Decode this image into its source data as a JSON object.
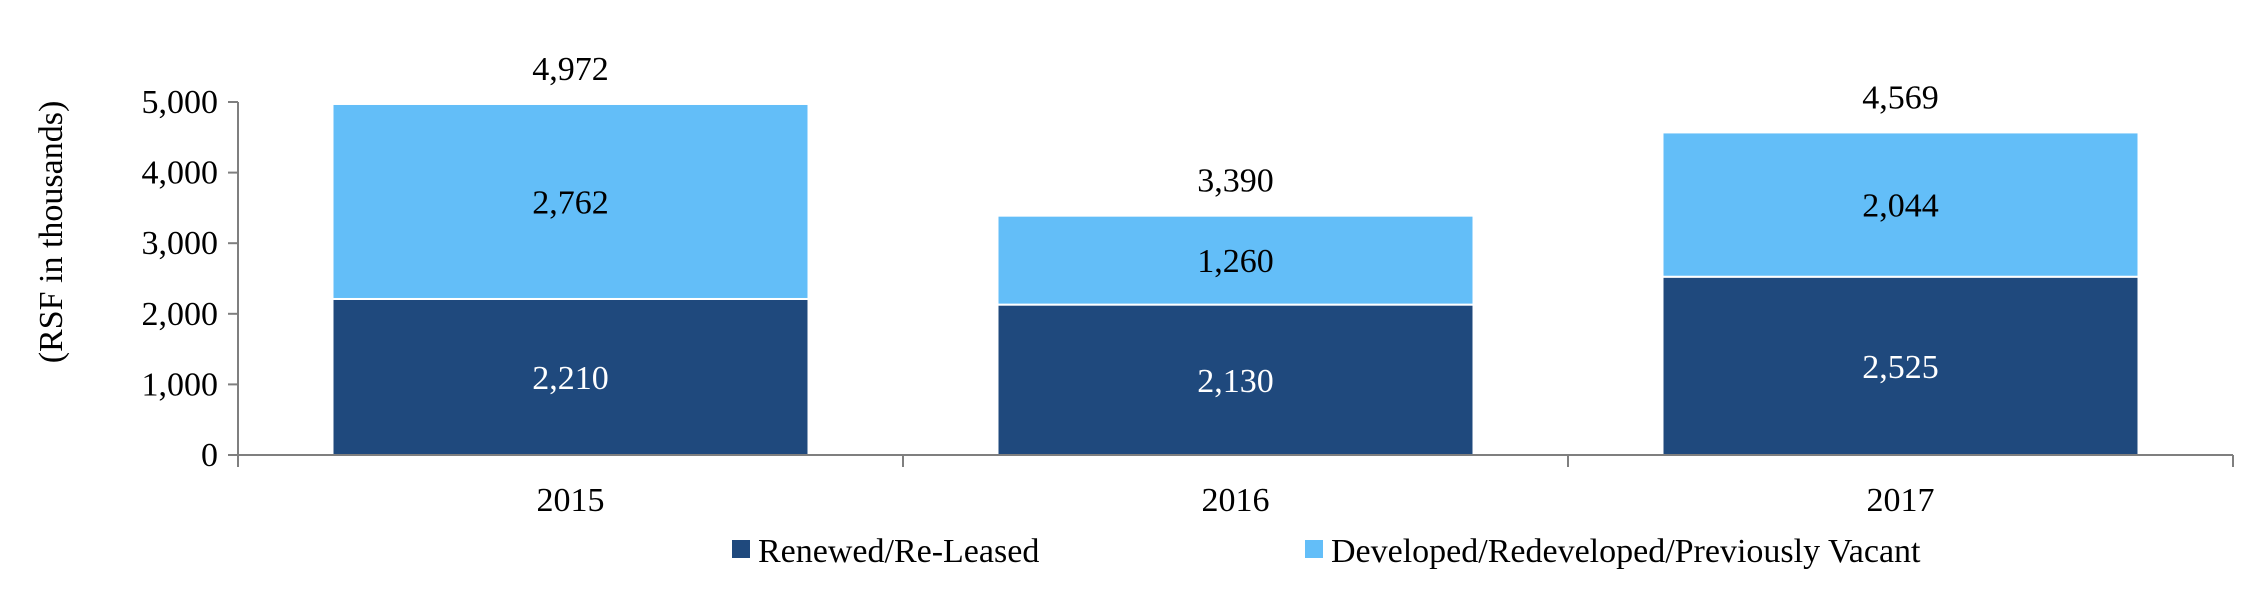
{
  "chart_data": {
    "type": "bar",
    "stacked": true,
    "ylabel": "(RSF in thousands)",
    "xlabel": "",
    "ylim": [
      0,
      5000
    ],
    "yticks": [
      0,
      1000,
      2000,
      3000,
      4000,
      5000
    ],
    "ytick_labels": [
      "0",
      "1,000",
      "2,000",
      "3,000",
      "4,000",
      "5,000"
    ],
    "categories": [
      "2015",
      "2016",
      "2017"
    ],
    "series": [
      {
        "name": "Renewed/Re-Leased",
        "color": "#1f497d",
        "values": [
          2210,
          2130,
          2525
        ],
        "labels": [
          "2,210",
          "2,130",
          "2,525"
        ]
      },
      {
        "name": "Developed/Redeveloped/Previously Vacant",
        "color": "#63bef8",
        "values": [
          2762,
          1260,
          2044
        ],
        "labels": [
          "2,762",
          "1,260",
          "2,044"
        ]
      }
    ],
    "totals": [
      4972,
      3390,
      4569
    ],
    "total_labels": [
      "4,972",
      "3,390",
      "4,569"
    ],
    "legend_position": "bottom",
    "grid": false
  }
}
